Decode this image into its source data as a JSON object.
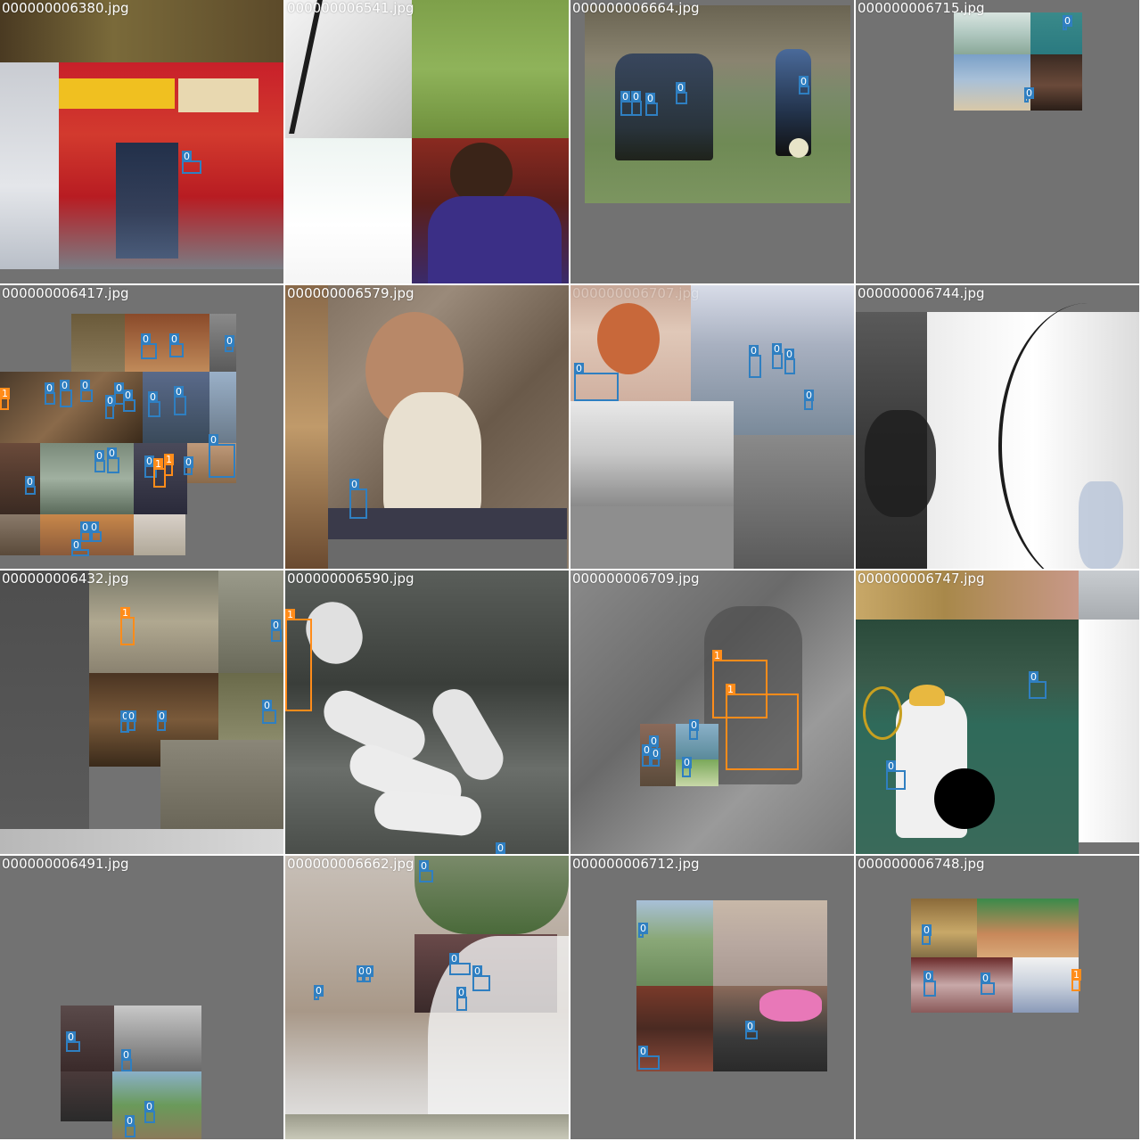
{
  "grid": {
    "tiles": [
      {
        "title": "000000006380.jpg"
      },
      {
        "title": "000000006541.jpg"
      },
      {
        "title": "000000006664.jpg"
      },
      {
        "title": "000000006715.jpg"
      },
      {
        "title": "000000006417.jpg"
      },
      {
        "title": "000000006579.jpg"
      },
      {
        "title": "000000006707.jpg"
      },
      {
        "title": "000000006744.jpg"
      },
      {
        "title": "000000006432.jpg"
      },
      {
        "title": "000000006590.jpg"
      },
      {
        "title": "000000006709.jpg"
      },
      {
        "title": "000000006747.jpg"
      },
      {
        "title": "000000006491.jpg"
      },
      {
        "title": "000000006662.jpg"
      },
      {
        "title": "000000006712.jpg"
      },
      {
        "title": "000000006748.jpg"
      }
    ]
  },
  "classes": {
    "c0": {
      "label": "0",
      "color": "#2f7fc1"
    },
    "c1": {
      "label": "1",
      "color": "#ff8c1a"
    }
  },
  "colors": {
    "padding": "#727272",
    "box_class_0": "#2f7fc1",
    "box_class_1": "#ff8c1a",
    "title_text": "#ffffff"
  }
}
